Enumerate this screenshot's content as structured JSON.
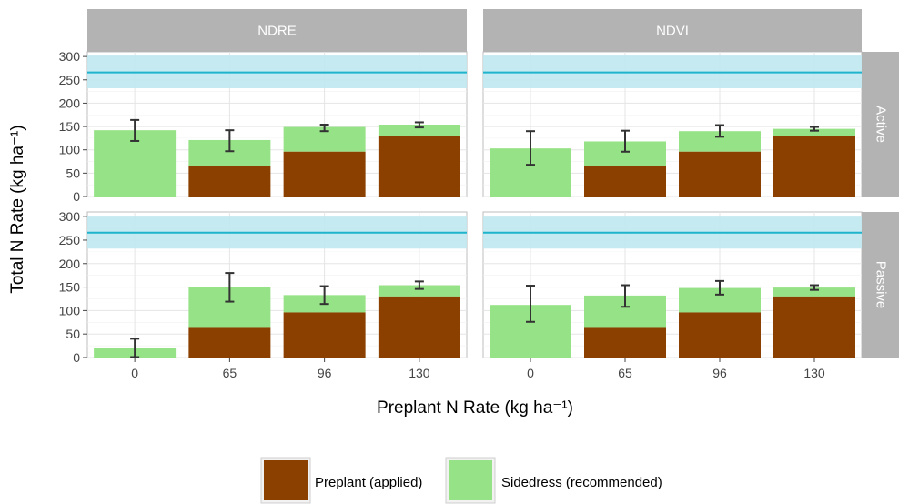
{
  "chart_data": {
    "type": "bar",
    "stacked": true,
    "x_categories": [
      "0",
      "65",
      "96",
      "130"
    ],
    "column_facets": [
      "NDRE",
      "NDVI"
    ],
    "row_facets": [
      "Active",
      "Passive"
    ],
    "xlabel": "Preplant N Rate (kg ha⁻¹)",
    "ylabel": "Total N Rate (kg ha⁻¹)",
    "ylim": [
      0,
      310
    ],
    "yticks": [
      0,
      50,
      100,
      150,
      200,
      250,
      300
    ],
    "reference_line": {
      "value": 266,
      "band": [
        232,
        302
      ]
    },
    "legend": {
      "position": "bottom",
      "entries": [
        "Preplant (applied)",
        "Sidedress (recommended)"
      ]
    },
    "colors": {
      "preplant": "#8B4000",
      "sidedress": "#96E286",
      "reference_line": "#1FB3CC",
      "reference_band": "#BFE8F0",
      "strip": "#B3B3B3",
      "grid": "#E5E5E5"
    },
    "panels": [
      {
        "col": "NDRE",
        "row": "Active",
        "preplant": [
          0,
          65,
          96,
          130
        ],
        "total": [
          142,
          121,
          149,
          154
        ],
        "err_low": [
          119,
          97,
          140,
          148
        ],
        "err_high": [
          164,
          142,
          154,
          159
        ]
      },
      {
        "col": "NDVI",
        "row": "Active",
        "preplant": [
          0,
          65,
          96,
          130
        ],
        "total": [
          103,
          118,
          140,
          145
        ],
        "err_low": [
          68,
          96,
          128,
          141
        ],
        "err_high": [
          140,
          141,
          153,
          149
        ]
      },
      {
        "col": "NDRE",
        "row": "Passive",
        "preplant": [
          0,
          65,
          96,
          130
        ],
        "total": [
          20,
          150,
          133,
          154
        ],
        "err_low": [
          1,
          119,
          114,
          146
        ],
        "err_high": [
          40,
          180,
          152,
          162
        ]
      },
      {
        "col": "NDVI",
        "row": "Passive",
        "preplant": [
          0,
          65,
          96,
          130
        ],
        "total": [
          112,
          132,
          148,
          149
        ],
        "err_low": [
          76,
          108,
          134,
          144
        ],
        "err_high": [
          153,
          154,
          163,
          154
        ]
      }
    ]
  }
}
